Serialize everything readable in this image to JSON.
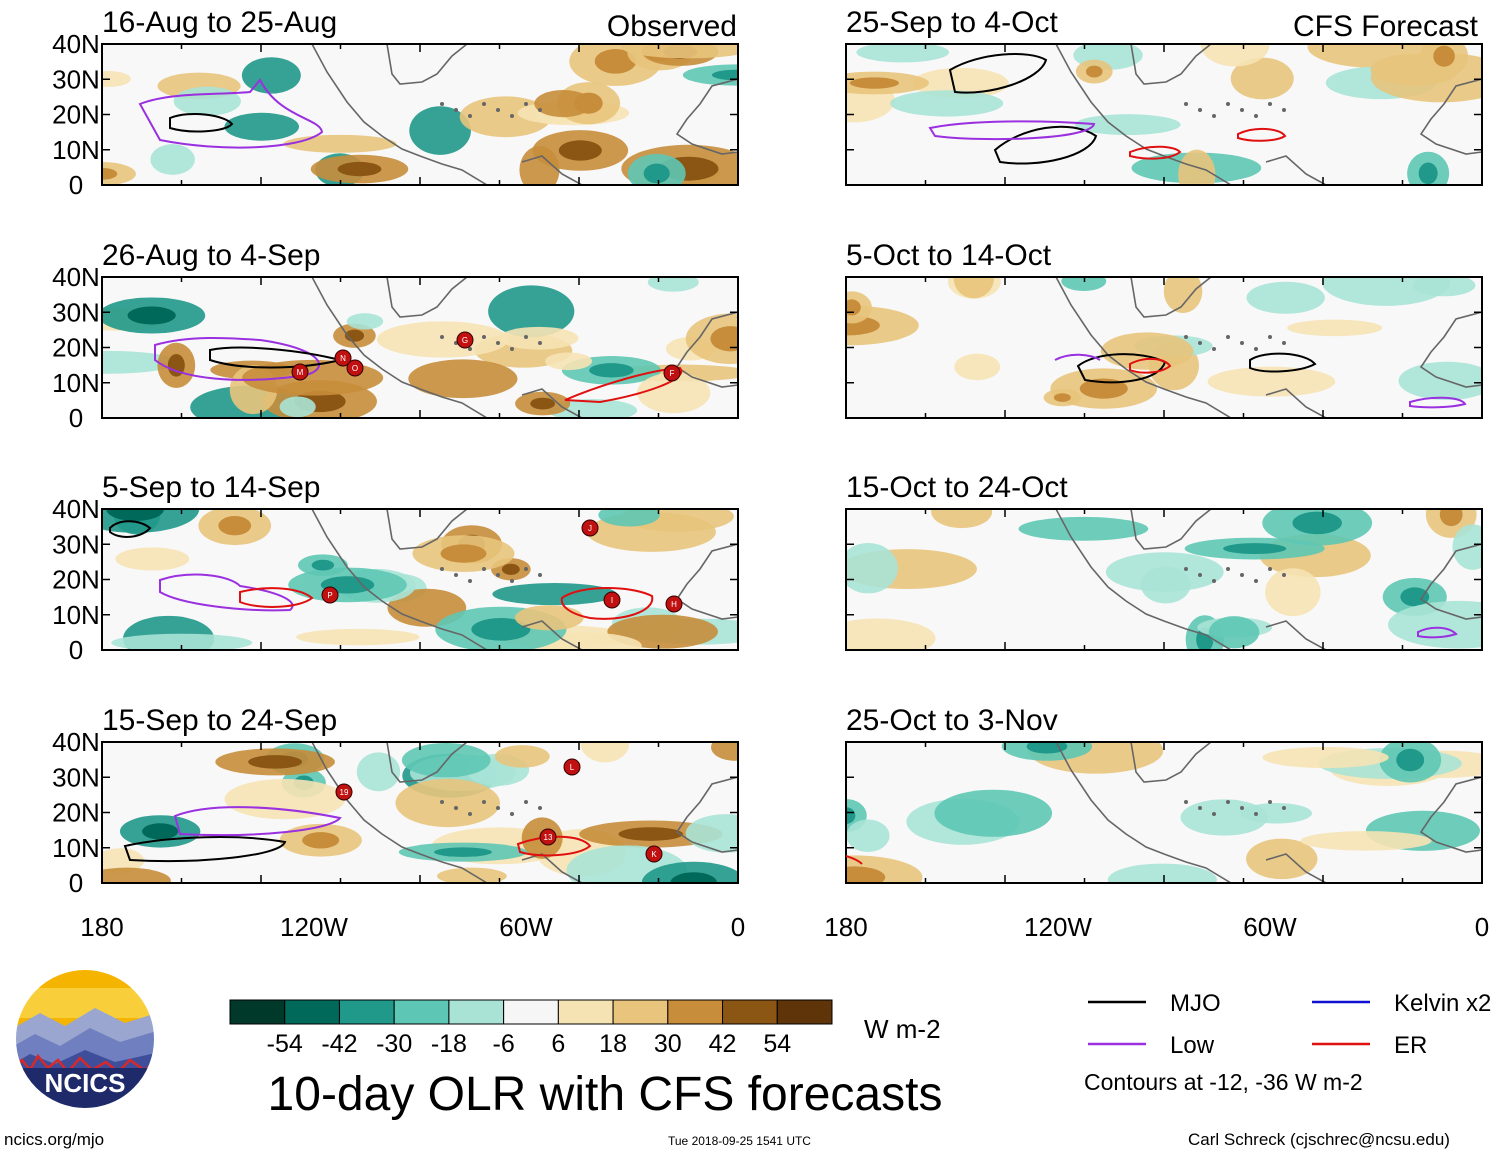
{
  "chart_data": {
    "type": "heatmap",
    "title": "10-day OLR with CFS forecasts",
    "variable": "OLR anomaly (W m-2)",
    "column_headers": [
      "Observed",
      "CFS Forecast"
    ],
    "x_ticks": [
      "180",
      "120W",
      "60W",
      "0"
    ],
    "y_ticks": [
      "40N",
      "30N",
      "20N",
      "10N",
      "0"
    ],
    "x_range_deg": [
      180,
      0
    ],
    "y_range_deg": [
      0,
      40
    ],
    "panels": [
      {
        "period": "16-Aug to 25-Aug",
        "kind": "observed"
      },
      {
        "period": "26-Aug to 4-Sep",
        "kind": "observed"
      },
      {
        "period": "5-Sep to 14-Sep",
        "kind": "observed"
      },
      {
        "period": "15-Sep to 24-Sep",
        "kind": "observed"
      },
      {
        "period": "25-Sep to 4-Oct",
        "kind": "forecast"
      },
      {
        "period": "5-Oct to 14-Oct",
        "kind": "forecast"
      },
      {
        "period": "15-Oct to 24-Oct",
        "kind": "forecast"
      },
      {
        "period": "25-Oct to 3-Nov",
        "kind": "forecast"
      }
    ],
    "colorbar": {
      "unit": "W m-2",
      "ticks": [
        "-54",
        "-42",
        "-30",
        "-18",
        "-6",
        "6",
        "18",
        "30",
        "42",
        "54"
      ],
      "colors": [
        "#00392a",
        "#00695a",
        "#20988a",
        "#5ec6b4",
        "#a9e3d6",
        "#e8f5f1",
        "#f6f6f6",
        "#f6e3b4",
        "#e8c47c",
        "#c78d3b",
        "#8b5513",
        "#5e3408"
      ]
    },
    "legend": [
      {
        "label": "MJO",
        "color": "#000000"
      },
      {
        "label": "Kelvin x2",
        "color": "#1010d0"
      },
      {
        "label": "Low",
        "color": "#9a30e0"
      },
      {
        "label": "ER",
        "color": "#e01010"
      }
    ],
    "contour_note": "Contours at -12, -36 W m-2",
    "storm_markers": [
      "M",
      "N",
      "O",
      "G",
      "F",
      "P",
      "J",
      "I",
      "H",
      "19",
      "L",
      "13",
      "K"
    ]
  },
  "logo": {
    "text": "NCICS"
  },
  "footer": {
    "url": "ncics.org/mjo",
    "timestamp": "Tue 2018-09-25 1541 UTC",
    "credit": "Carl Schreck (cjschrec@ncsu.edu)"
  }
}
